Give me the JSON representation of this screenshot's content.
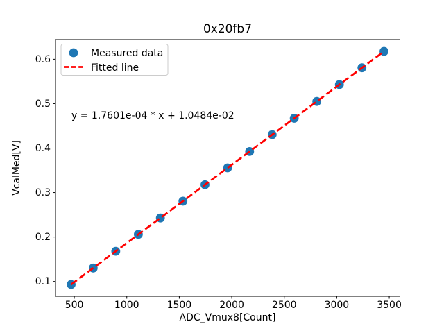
{
  "figure": {
    "background": "#ffffff"
  },
  "chart_data": {
    "type": "scatter",
    "title": "0x20fb7",
    "xlabel": "ADC_Vmux8[Count]",
    "ylabel": "VcalMed[V]",
    "xlim": [
      321,
      3602
    ],
    "ylim": [
      0.0667,
      0.6443
    ],
    "xticks": [
      500,
      1000,
      1500,
      2000,
      2500,
      3000,
      3500
    ],
    "yticks": [
      0.1,
      0.2,
      0.3,
      0.4,
      0.5,
      0.6
    ],
    "grid": false,
    "legend_position": "upper left",
    "series": [
      {
        "name": "Measured data",
        "type": "scatter",
        "color": "#1f77b4",
        "x": [
          470,
          680,
          895,
          1110,
          1320,
          1535,
          1745,
          1960,
          2170,
          2385,
          2595,
          2810,
          3025,
          3240,
          3450
        ],
        "y": [
          0.0932,
          0.1302,
          0.168,
          0.2059,
          0.2428,
          0.2807,
          0.3176,
          0.3555,
          0.3924,
          0.4303,
          0.4672,
          0.5051,
          0.5429,
          0.5808,
          0.6177
        ]
      },
      {
        "name": "Fitted line",
        "type": "line",
        "linestyle": "dashed",
        "color": "#ff0000",
        "slope": 0.00017601,
        "intercept": 0.010484,
        "x_range": [
          470,
          3450
        ]
      }
    ],
    "annotation": {
      "text": "y = 1.7601e-04 * x + 1.0484e-02"
    }
  },
  "legend": {
    "entries": [
      {
        "label": "Measured data",
        "marker": "circle",
        "color": "#1f77b4"
      },
      {
        "label": "Fitted line",
        "marker": "dashed-line",
        "color": "#ff0000"
      }
    ]
  }
}
